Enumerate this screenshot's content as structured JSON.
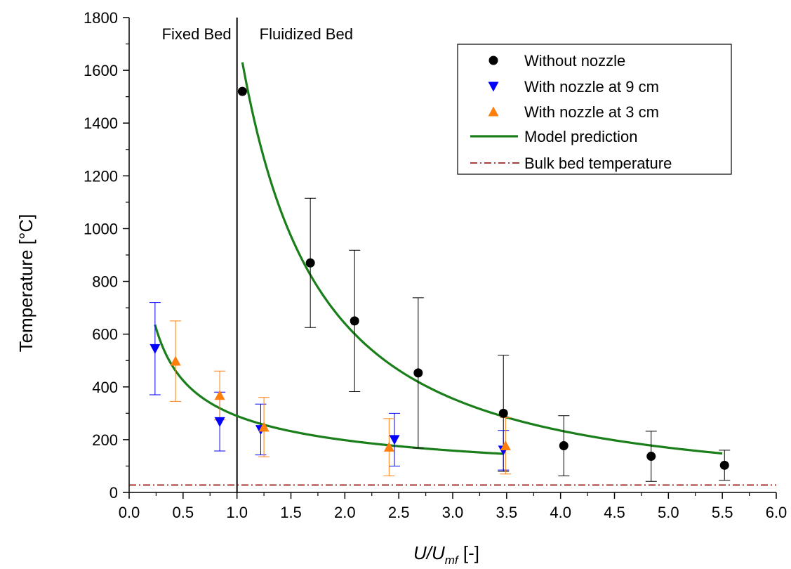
{
  "chart_data": {
    "type": "scatter",
    "xlabel": {
      "main": "U/U",
      "sub": "mf",
      "tail": " [-]"
    },
    "ylabel": "Temperature [°C]",
    "xlim": [
      0,
      6
    ],
    "ylim": [
      0,
      1800
    ],
    "xticks": [
      "0.0",
      "0.5",
      "1.0",
      "1.5",
      "2.0",
      "2.5",
      "3.0",
      "3.5",
      "4.0",
      "4.5",
      "5.0",
      "5.5",
      "6.0"
    ],
    "yticks": [
      "0",
      "200",
      "400",
      "600",
      "800",
      "1000",
      "1200",
      "1400",
      "1600",
      "1800"
    ],
    "grid": false,
    "legend_position": "top-right",
    "regions": [
      {
        "label": "Fixed Bed"
      },
      {
        "label": "Fluidized Bed"
      }
    ],
    "divider_x": 1.0,
    "colors": {
      "without": "#000000",
      "nozzle9": "#0000ff",
      "nozzle3": "#ff7f0e",
      "model": "#1a7f1a",
      "bulk": "#8b0000"
    },
    "series": [
      {
        "name": "Without nozzle",
        "marker": "circle",
        "points": [
          {
            "x": 1.05,
            "y": 1520
          },
          {
            "x": 1.68,
            "y": 870,
            "lo": 625,
            "hi": 1115
          },
          {
            "x": 2.09,
            "y": 650,
            "lo": 382,
            "hi": 918
          },
          {
            "x": 2.68,
            "y": 453,
            "lo": 168,
            "hi": 738
          },
          {
            "x": 3.47,
            "y": 300,
            "lo": 80,
            "hi": 520
          },
          {
            "x": 4.03,
            "y": 177,
            "lo": 63,
            "hi": 291
          },
          {
            "x": 4.84,
            "y": 137,
            "lo": 42,
            "hi": 232
          },
          {
            "x": 5.52,
            "y": 103,
            "lo": 46,
            "hi": 160
          }
        ]
      },
      {
        "name": "With nozzle at 9 cm",
        "marker": "triangle-down",
        "points": [
          {
            "x": 0.24,
            "y": 545,
            "lo": 370,
            "hi": 720
          },
          {
            "x": 0.84,
            "y": 268,
            "lo": 157,
            "hi": 380
          },
          {
            "x": 1.22,
            "y": 238,
            "lo": 142,
            "hi": 335
          },
          {
            "x": 2.46,
            "y": 200,
            "lo": 100,
            "hi": 300
          },
          {
            "x": 3.47,
            "y": 160,
            "lo": 85,
            "hi": 235
          }
        ]
      },
      {
        "name": "With nozzle at 3 cm",
        "marker": "triangle-up",
        "points": [
          {
            "x": 0.43,
            "y": 498,
            "lo": 345,
            "hi": 650
          },
          {
            "x": 0.84,
            "y": 368,
            "lo": 275,
            "hi": 460
          },
          {
            "x": 1.25,
            "y": 248,
            "lo": 135,
            "hi": 360
          },
          {
            "x": 2.41,
            "y": 172,
            "lo": 63,
            "hi": 280
          },
          {
            "x": 3.49,
            "y": 177,
            "lo": 70,
            "hi": 284
          }
        ]
      },
      {
        "name": "Model prediction",
        "marker": "line",
        "curves": [
          {
            "x_range": [
              1.05,
              5.5
            ],
            "k": 1750,
            "n": 1.45
          },
          {
            "x_range": [
              0.24,
              3.47
            ],
            "k": 290,
            "n": 0.55
          }
        ]
      },
      {
        "name": "Bulk bed temperature",
        "marker": "dash-dot",
        "y": 28
      }
    ]
  }
}
